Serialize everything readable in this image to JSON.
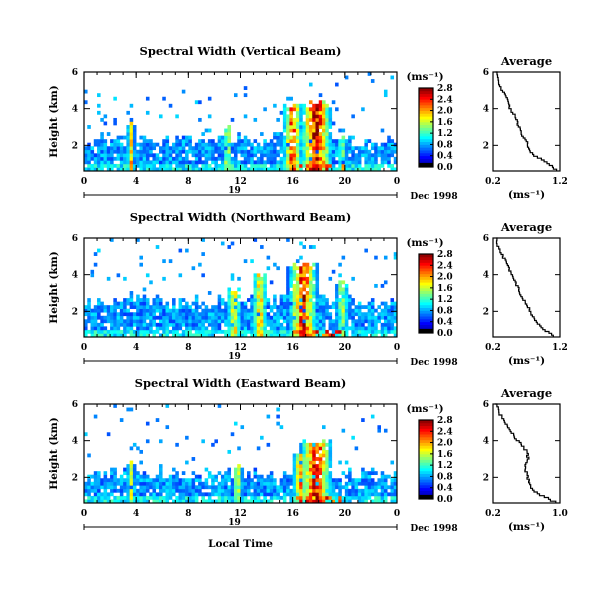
{
  "chart_data": [
    {
      "type": "heatmap",
      "title": "Spectral Width (Vertical Beam)",
      "ylabel": "Height (km)",
      "xlabel": "",
      "xlim": [
        0,
        24
      ],
      "ylim": [
        0.6,
        6
      ],
      "x_ticks": [
        "0",
        "4",
        "8",
        "12",
        "16",
        "20",
        "0"
      ],
      "y_ticks": [
        "2",
        "4",
        "6"
      ],
      "day_label": "19",
      "date_label": "Dec 1998",
      "colorbar": {
        "label": "(ms⁻¹)",
        "range": [
          0,
          2.8
        ],
        "ticks": [
          "0.0",
          "0.4",
          "0.8",
          "1.2",
          "1.6",
          "2.0",
          "2.4",
          "2.8"
        ]
      },
      "convective_cells": [
        {
          "t": 3.6,
          "h": 3.2,
          "w": 0.3,
          "v": 0.6
        },
        {
          "t": 11.0,
          "h": 3.0,
          "w": 0.35,
          "v": 0.55
        },
        {
          "t": 16.0,
          "h": 4.2,
          "w": 0.8,
          "v": 0.8
        },
        {
          "t": 17.8,
          "h": 4.3,
          "w": 1.3,
          "v": 0.95
        },
        {
          "t": 19.8,
          "h": 2.4,
          "w": 0.4,
          "v": 0.4
        }
      ],
      "layer_top": 2.3,
      "average": {
        "title": "Average",
        "xlabel": "(ms⁻¹)",
        "xlim": [
          0.2,
          1.2
        ],
        "x_ticks": [
          "0.2",
          "1.2"
        ],
        "y_ticks": [
          "2",
          "4",
          "6"
        ],
        "height": [
          6.0,
          5.4,
          5.0,
          4.6,
          4.2,
          3.8,
          3.4,
          3.0,
          2.6,
          2.2,
          1.8,
          1.4,
          1.0,
          0.6
        ],
        "value": [
          0.24,
          0.28,
          0.32,
          0.4,
          0.42,
          0.48,
          0.55,
          0.58,
          0.62,
          0.7,
          0.72,
          0.82,
          1.0,
          1.15
        ]
      }
    },
    {
      "type": "heatmap",
      "title": "Spectral Width (Northward Beam)",
      "ylabel": "Height (km)",
      "xlabel": "",
      "xlim": [
        0,
        24
      ],
      "ylim": [
        0.6,
        6
      ],
      "x_ticks": [
        "0",
        "4",
        "8",
        "12",
        "16",
        "20",
        "0"
      ],
      "y_ticks": [
        "2",
        "4",
        "6"
      ],
      "day_label": "19",
      "date_label": "Dec 1998",
      "colorbar": {
        "label": "(ms⁻¹)",
        "range": [
          0,
          2.8
        ],
        "ticks": [
          "0.0",
          "0.4",
          "0.8",
          "1.2",
          "1.6",
          "2.0",
          "2.4",
          "2.8"
        ]
      },
      "convective_cells": [
        {
          "t": 11.5,
          "h": 3.2,
          "w": 0.6,
          "v": 0.6
        },
        {
          "t": 13.5,
          "h": 4.0,
          "w": 0.6,
          "v": 0.65
        },
        {
          "t": 16.8,
          "h": 4.6,
          "w": 1.2,
          "v": 0.85
        },
        {
          "t": 19.8,
          "h": 3.6,
          "w": 0.5,
          "v": 0.5
        }
      ],
      "layer_top": 2.6,
      "average": {
        "title": "Average",
        "xlabel": "(ms⁻¹)",
        "xlim": [
          0.2,
          1.2
        ],
        "x_ticks": [
          "0.2",
          "1.2"
        ],
        "y_ticks": [
          "2",
          "4",
          "6"
        ],
        "height": [
          6.0,
          5.4,
          5.0,
          4.6,
          4.2,
          3.8,
          3.4,
          3.0,
          2.6,
          2.2,
          1.8,
          1.4,
          1.0,
          0.6
        ],
        "value": [
          0.24,
          0.28,
          0.34,
          0.4,
          0.45,
          0.5,
          0.55,
          0.6,
          0.65,
          0.72,
          0.78,
          0.85,
          0.95,
          1.1
        ]
      }
    },
    {
      "type": "heatmap",
      "title": "Spectral Width (Eastward Beam)",
      "ylabel": "Height (km)",
      "xlabel": "Local Time",
      "xlim": [
        0,
        24
      ],
      "ylim": [
        0.6,
        6
      ],
      "x_ticks": [
        "0",
        "4",
        "8",
        "12",
        "16",
        "20",
        "0"
      ],
      "y_ticks": [
        "2",
        "4",
        "6"
      ],
      "day_label": "19",
      "date_label": "Dec 1998",
      "colorbar": {
        "label": "(ms⁻¹)",
        "range": [
          0,
          2.8
        ],
        "ticks": [
          "0.0",
          "0.4",
          "0.8",
          "1.2",
          "1.6",
          "2.0",
          "2.4",
          "2.8"
        ]
      },
      "convective_cells": [
        {
          "t": 3.6,
          "h": 2.8,
          "w": 0.3,
          "v": 0.55
        },
        {
          "t": 11.8,
          "h": 2.6,
          "w": 0.4,
          "v": 0.5
        },
        {
          "t": 16.6,
          "h": 3.4,
          "w": 0.6,
          "v": 0.7
        },
        {
          "t": 17.8,
          "h": 4.0,
          "w": 1.3,
          "v": 0.9
        }
      ],
      "layer_top": 2.2,
      "average": {
        "title": "Average",
        "xlabel": "(ms⁻¹)",
        "xlim": [
          0.2,
          1.0
        ],
        "x_ticks": [
          "0.2",
          "1.0"
        ],
        "y_ticks": [
          "2",
          "4",
          "6"
        ],
        "height": [
          6.0,
          5.4,
          5.0,
          4.6,
          4.2,
          3.8,
          3.4,
          3.0,
          2.6,
          2.2,
          1.8,
          1.4,
          1.0,
          0.6
        ],
        "value": [
          0.22,
          0.28,
          0.34,
          0.4,
          0.45,
          0.52,
          0.6,
          0.62,
          0.58,
          0.6,
          0.62,
          0.65,
          0.75,
          0.95
        ]
      }
    }
  ]
}
